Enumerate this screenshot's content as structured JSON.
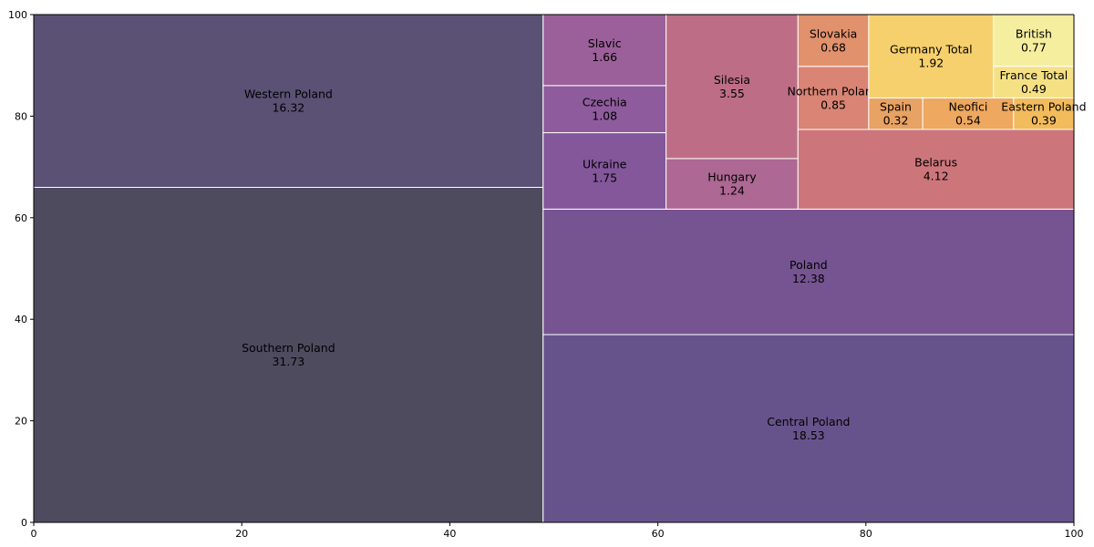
{
  "chart_data": {
    "type": "treemap",
    "title": "",
    "xlabel": "",
    "ylabel": "",
    "xlim": [
      0,
      100
    ],
    "ylim": [
      0,
      100
    ],
    "x_ticks": [
      0,
      20,
      40,
      60,
      80,
      100
    ],
    "y_ticks": [
      0,
      20,
      40,
      60,
      80,
      100
    ],
    "grid": false,
    "tiles": [
      {
        "label": "Southern Poland",
        "value": "31.73",
        "x": 0,
        "y": 0,
        "w": 48.97,
        "h": 65.98,
        "color": "#4f4b5f"
      },
      {
        "label": "Western Poland",
        "value": "16.32",
        "x": 0,
        "y": 65.98,
        "w": 48.97,
        "h": 34.02,
        "color": "#5a5175"
      },
      {
        "label": "Central Poland",
        "value": "18.53",
        "x": 48.97,
        "y": 0,
        "w": 51.03,
        "h": 36.98,
        "color": "#67538b"
      },
      {
        "label": "Poland",
        "value": "12.38",
        "x": 48.97,
        "y": 36.98,
        "w": 51.03,
        "h": 24.71,
        "color": "#765492"
      },
      {
        "label": "Ukraine",
        "value": "1.75",
        "x": 48.97,
        "y": 61.69,
        "w": 11.82,
        "h": 15.05,
        "color": "#83579a"
      },
      {
        "label": "Czechia",
        "value": "1.08",
        "x": 48.97,
        "y": 76.74,
        "w": 11.82,
        "h": 9.28,
        "color": "#8e5b9c"
      },
      {
        "label": "Slavic",
        "value": "1.66",
        "x": 48.97,
        "y": 86.02,
        "w": 11.82,
        "h": 13.98,
        "color": "#9b5f99"
      },
      {
        "label": "Hungary",
        "value": "1.24",
        "x": 60.79,
        "y": 61.69,
        "w": 12.68,
        "h": 9.96,
        "color": "#ad6893"
      },
      {
        "label": "Silesia",
        "value": "3.55",
        "x": 60.79,
        "y": 71.65,
        "w": 12.68,
        "h": 28.35,
        "color": "#bd6e86"
      },
      {
        "label": "Belarus",
        "value": "4.12",
        "x": 73.47,
        "y": 61.69,
        "w": 26.53,
        "h": 15.69,
        "color": "#cc767c"
      },
      {
        "label": "Northern Poland",
        "value": "0.85",
        "x": 73.47,
        "y": 77.38,
        "w": 6.8,
        "h": 12.42,
        "color": "#d98474"
      },
      {
        "label": "Slovakia",
        "value": "0.68",
        "x": 73.47,
        "y": 89.8,
        "w": 6.8,
        "h": 10.2,
        "color": "#e2916d"
      },
      {
        "label": "Spain",
        "value": "0.32",
        "x": 80.27,
        "y": 77.38,
        "w": 5.19,
        "h": 6.22,
        "color": "#e8a263"
      },
      {
        "label": "Neofici",
        "value": "0.54",
        "x": 85.46,
        "y": 77.38,
        "w": 8.74,
        "h": 6.22,
        "color": "#eea85f"
      },
      {
        "label": "Eastern Poland",
        "value": "0.39",
        "x": 94.2,
        "y": 77.38,
        "w": 5.8,
        "h": 6.22,
        "color": "#f2bb5c"
      },
      {
        "label": "Germany Total",
        "value": "1.92",
        "x": 80.27,
        "y": 83.6,
        "w": 12.0,
        "h": 16.4,
        "color": "#f6d06c"
      },
      {
        "label": "France Total",
        "value": "0.49",
        "x": 92.27,
        "y": 83.6,
        "w": 7.73,
        "h": 6.22,
        "color": "#f5e084"
      },
      {
        "label": "British",
        "value": "0.77",
        "x": 92.27,
        "y": 89.82,
        "w": 7.73,
        "h": 10.18,
        "color": "#f4ee9e"
      }
    ]
  }
}
